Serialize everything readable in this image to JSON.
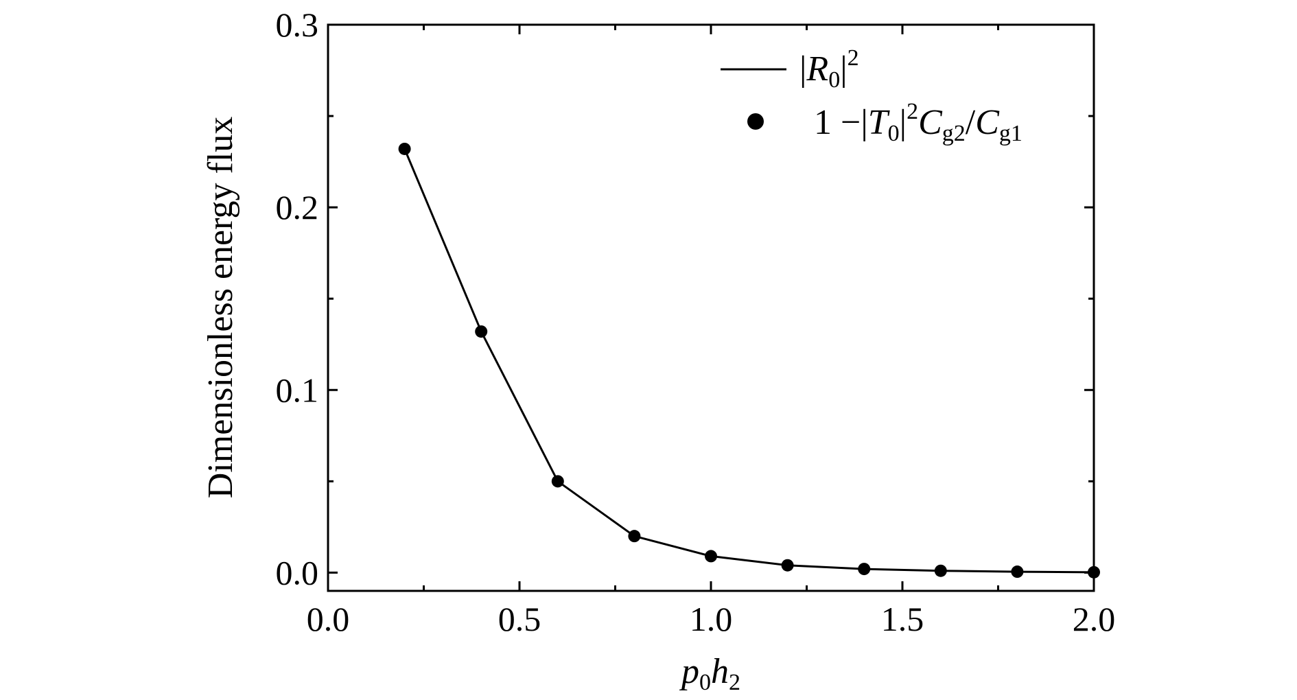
{
  "chart_data": {
    "type": "line",
    "xlabel": {
      "main": "p",
      "sub1": "0",
      "main2": "h",
      "sub2": "2"
    },
    "ylabel": "Dimensionless energy flux",
    "xlim": [
      0,
      2.0
    ],
    "ylim": [
      -0.01,
      0.3
    ],
    "x_ticks": [
      "0.0",
      "0.5",
      "1.0",
      "1.5",
      "2.0"
    ],
    "y_ticks": [
      "0.0",
      "0.1",
      "0.2",
      "0.3"
    ],
    "grid": false,
    "legend_position": "top-right",
    "x": [
      0.2,
      0.4,
      0.6,
      0.8,
      1.0,
      1.2,
      1.4,
      1.6,
      1.8,
      2.0
    ],
    "series": [
      {
        "name": "|R0|2",
        "legend": {
          "pre": "|",
          "sym": "R",
          "sub": "0",
          "post": "|",
          "sup": "2"
        },
        "style": "line",
        "values": [
          0.232,
          0.132,
          0.05,
          0.02,
          0.009,
          0.004,
          0.002,
          0.001,
          0.0005,
          0.0002
        ]
      },
      {
        "name": "1 −|T0|2Cg2/Cg1",
        "legend": {
          "one": "1 −|",
          "sym": "T",
          "sub": "0",
          "bar": "|",
          "sup": "2",
          "c1": "C",
          "c1sub": "g2",
          "slash": "/",
          "c2": "C",
          "c2sub": "g1"
        },
        "style": "markers",
        "values": [
          0.232,
          0.132,
          0.05,
          0.02,
          0.009,
          0.004,
          0.002,
          0.001,
          0.0005,
          0.0002
        ]
      }
    ]
  }
}
